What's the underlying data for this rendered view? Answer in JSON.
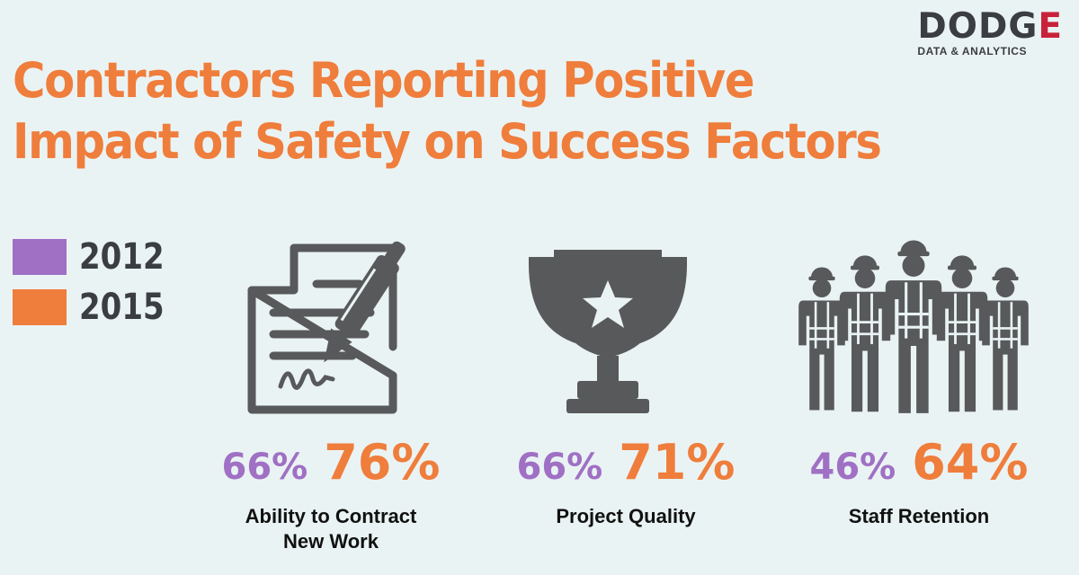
{
  "logo": {
    "word_main": "DODG",
    "word_accent": "E",
    "subtitle": "DATA & ANALYTICS"
  },
  "colors": {
    "year_2012": "#9f70c4",
    "year_2015": "#ef7d3c",
    "icon": "#58595b",
    "title": "#ef7d3c"
  },
  "chart_data": {
    "type": "table",
    "title_lines": [
      "Contractors Reporting Positive",
      "Impact of Safety on Success Factors"
    ],
    "legend": [
      "2012",
      "2015"
    ],
    "categories": [
      {
        "label": "Ability to Contract\nNew Work",
        "icon": "contract-signing-icon",
        "values": {
          "2012": "66%",
          "2015": "76%"
        }
      },
      {
        "label": "Project Quality",
        "icon": "trophy-icon",
        "values": {
          "2012": "66%",
          "2015": "71%"
        }
      },
      {
        "label": "Staff Retention",
        "icon": "workers-group-icon",
        "values": {
          "2012": "46%",
          "2015": "64%"
        }
      }
    ]
  }
}
